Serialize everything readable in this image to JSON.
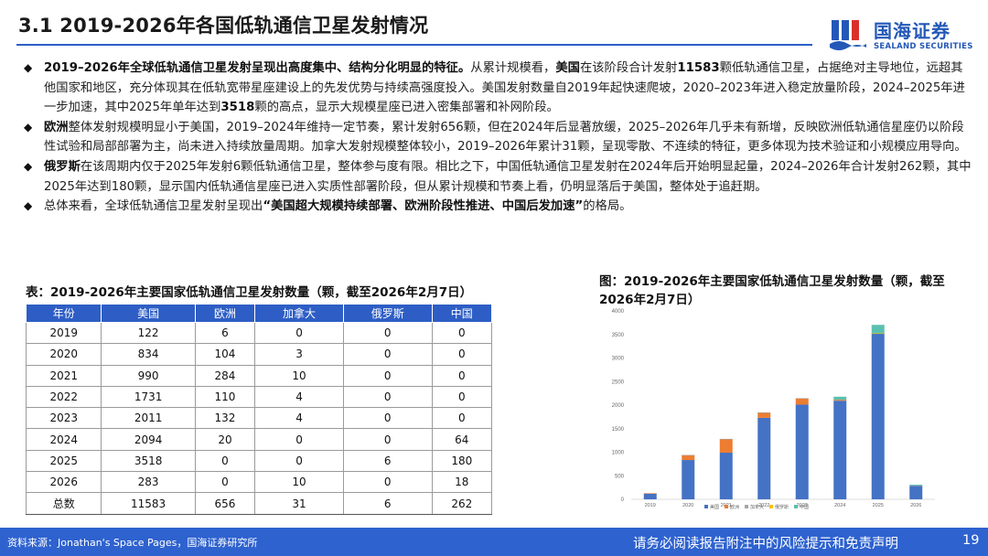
{
  "header": {
    "title": "3.1 2019-2026年各国低轨通信卫星发射情况",
    "logo_cn": "国海证券",
    "logo_en": "SEALAND SECURITIES"
  },
  "bullets": [
    [
      {
        "t": "2019–2026年全球低轨通信卫星发射呈现出高度集中、结构分化明显的特征。",
        "b": true
      },
      {
        "t": "从累计规模看，"
      },
      {
        "t": "美国",
        "b": true
      },
      {
        "t": "在该阶段合计发射"
      },
      {
        "t": "11583",
        "b": true
      },
      {
        "t": "颗低轨通信卫星，占据绝对主导地位，远超其他国家和地区，充分体现其在低轨宽带星座建设上的先发优势与持续高强度投入。美国发射数量自2019年起快速爬坡，2020–2023年进入稳定放量阶段，2024–2025年进一步加速，其中2025年单年达到"
      },
      {
        "t": "3518",
        "b": true
      },
      {
        "t": "颗的高点，显示大规模星座已进入密集部署和补网阶段。"
      }
    ],
    [
      {
        "t": "欧洲",
        "b": true
      },
      {
        "t": "整体发射规模明显小于美国，2019–2024年维持一定节奏，累计发射656颗，但在2024年后显著放缓，2025–2026年几乎未有新增，反映欧洲低轨通信星座仍以阶段性试验和局部部署为主，尚未进入持续放量周期。加拿大发射规模整体较小，2019–2026年累计31颗，呈现零散、不连续的特征，更多体现为技术验证和小规模应用导向。"
      }
    ],
    [
      {
        "t": "俄罗斯",
        "b": true
      },
      {
        "t": "在该周期内仅于2025年发射6颗低轨通信卫星，整体参与度有限。相比之下，中国低轨通信卫星发射在2024年后开始明显起量，2024–2026年合计发射262颗，其中2025年达到180颗，显示国内低轨通信星座已进入实质性部署阶段，但从累计规模和节奏上看，仍明显落后于美国，整体处于追赶期。"
      }
    ],
    [
      {
        "t": "总体来看，全球低轨通信卫星发射呈现出"
      },
      {
        "t": "“美国超大规模持续部署、欧洲阶段性推进、中国后发加速”",
        "b": true
      },
      {
        "t": "的格局。"
      }
    ]
  ],
  "table": {
    "caption": "表：2019-2026年主要国家低轨通信卫星发射数量（颗，截至2026年2月7日）",
    "headers": [
      "年份",
      "美国",
      "欧洲",
      "加拿大",
      "俄罗斯",
      "中国"
    ],
    "rows": [
      [
        "2019",
        "122",
        "6",
        "0",
        "0",
        "0"
      ],
      [
        "2020",
        "834",
        "104",
        "3",
        "0",
        "0"
      ],
      [
        "2021",
        "990",
        "284",
        "10",
        "0",
        "0"
      ],
      [
        "2022",
        "1731",
        "110",
        "4",
        "0",
        "0"
      ],
      [
        "2023",
        "2011",
        "132",
        "4",
        "0",
        "0"
      ],
      [
        "2024",
        "2094",
        "20",
        "0",
        "0",
        "64"
      ],
      [
        "2025",
        "3518",
        "0",
        "0",
        "6",
        "180"
      ],
      [
        "2026",
        "283",
        "0",
        "10",
        "0",
        "18"
      ],
      [
        "总数",
        "11583",
        "656",
        "31",
        "6",
        "262"
      ]
    ]
  },
  "chart_caption": "图：2019-2026年主要国家低轨通信卫星发射数量（颗，截至2026年2月7日）",
  "chart_data": {
    "type": "bar",
    "stacked": true,
    "categories": [
      "2019",
      "2020",
      "2021",
      "2022",
      "2023",
      "2024",
      "2025",
      "2026"
    ],
    "series": [
      {
        "name": "美国",
        "color": "#4472c4",
        "values": [
          122,
          834,
          990,
          1731,
          2011,
          2094,
          3518,
          283
        ]
      },
      {
        "name": "欧洲",
        "color": "#ed7d31",
        "values": [
          6,
          104,
          284,
          110,
          132,
          20,
          0,
          0
        ]
      },
      {
        "name": "加拿大",
        "color": "#a5a5a5",
        "values": [
          0,
          3,
          10,
          4,
          4,
          0,
          0,
          10
        ]
      },
      {
        "name": "俄罗斯",
        "color": "#ffc000",
        "values": [
          0,
          0,
          0,
          0,
          0,
          0,
          6,
          0
        ]
      },
      {
        "name": "中国",
        "color": "#5bc0b0",
        "values": [
          0,
          0,
          0,
          0,
          0,
          64,
          180,
          18
        ]
      }
    ],
    "ylim": [
      0,
      4000
    ],
    "yticks": [
      0,
      500,
      1000,
      1500,
      2000,
      2500,
      3000,
      3500,
      4000
    ],
    "legend": "bottom",
    "grid": false
  },
  "footer": {
    "source": "资料来源：Jonathan's Space Pages，国海证券研究所",
    "disclaimer": "请务必阅读报告附注中的风险提示和免责声明",
    "page": "19"
  }
}
